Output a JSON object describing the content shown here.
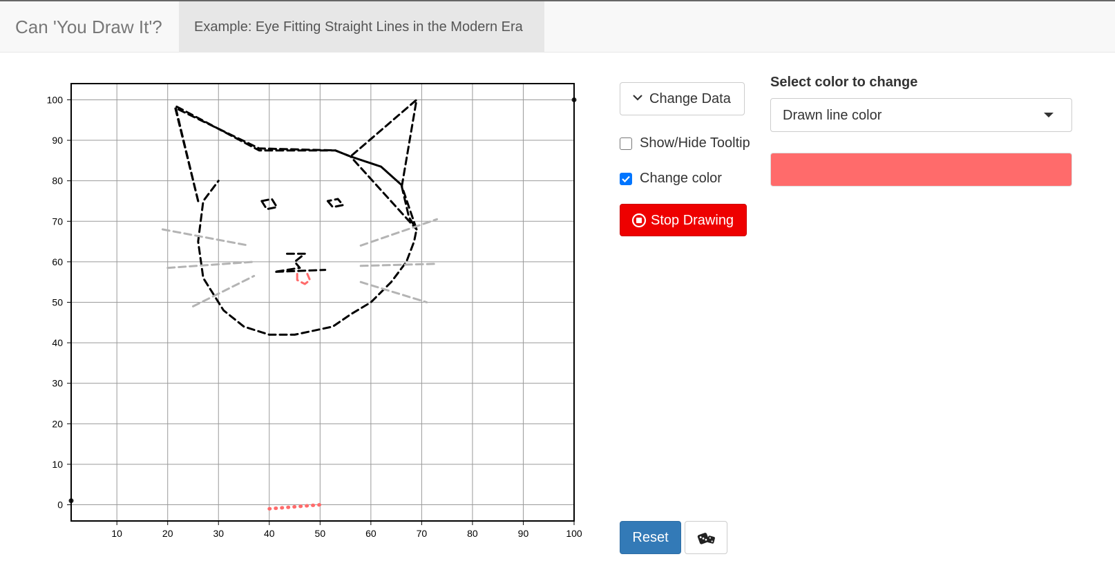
{
  "navbar": {
    "brand": "Can 'You Draw It'?",
    "active_tab": "Example: Eye Fitting Straight Lines in the Modern Era"
  },
  "controls": {
    "change_data_label": "Change Data",
    "show_hide_tooltip_label": "Show/Hide Tooltip",
    "show_hide_tooltip_checked": false,
    "change_color_label": "Change color",
    "change_color_checked": true,
    "stop_drawing_label": "Stop Drawing",
    "reset_label": "Reset",
    "stop_color": "#ee0000",
    "reset_color": "#337ab7"
  },
  "color_picker": {
    "label": "Select color to change",
    "selected": "Drawn line color",
    "swatch_color": "#ff6b6b"
  },
  "chart_data": {
    "type": "line",
    "xlim": [
      1,
      100
    ],
    "ylim": [
      -4,
      104
    ],
    "x_ticks": [
      10,
      20,
      30,
      40,
      50,
      60,
      70,
      80,
      90,
      100
    ],
    "y_ticks": [
      0,
      10,
      20,
      30,
      40,
      50,
      60,
      70,
      80,
      90,
      100
    ],
    "grid": true,
    "anchor_points": [
      [
        1,
        1
      ],
      [
        100,
        100
      ]
    ],
    "series": [
      {
        "role": "ears-and-head",
        "color": "#000000",
        "x": [
          26,
          21.5,
          38,
          53,
          56,
          62,
          66,
          67.5,
          69,
          56,
          62,
          66,
          69,
          68.5,
          67,
          64,
          60,
          56,
          52.5,
          45,
          40,
          35,
          31,
          27,
          26,
          27,
          30
        ],
        "y": [
          75,
          98,
          88,
          87.5,
          86,
          83.5,
          79,
          71,
          68,
          86,
          83.5,
          79,
          68,
          65,
          60,
          55,
          50,
          47,
          44,
          42,
          42,
          44,
          48,
          56,
          65,
          75,
          80
        ]
      },
      {
        "role": "head-outline",
        "color": "#000000",
        "x": [
          26,
          21.5,
          38,
          53,
          56,
          69,
          66
        ],
        "y": [
          75,
          98.5,
          87.5,
          87.5,
          86,
          100,
          78
        ]
      },
      {
        "role": "right-eye",
        "color": "#000000",
        "x": [
          51.5,
          52.5,
          54.5,
          53.5,
          51.5
        ],
        "y": [
          75,
          73.5,
          74,
          75.5,
          75
        ]
      },
      {
        "role": "left-eye",
        "color": "#000000",
        "x": [
          38.5,
          39.5,
          41.5,
          40.5,
          38.5
        ],
        "y": [
          75,
          73,
          73.5,
          75.5,
          75
        ]
      },
      {
        "role": "whisker-left-1",
        "color": "#b4b4b4",
        "x": [
          19,
          36
        ],
        "y": [
          68,
          64
        ]
      },
      {
        "role": "whisker-left-2",
        "color": "#b4b4b4",
        "x": [
          20,
          37
        ],
        "y": [
          58.5,
          60
        ]
      },
      {
        "role": "whisker-left-3",
        "color": "#b4b4b4",
        "x": [
          25,
          37
        ],
        "y": [
          49,
          56.5
        ]
      },
      {
        "role": "whisker-right-1",
        "color": "#b4b4b4",
        "x": [
          58,
          73
        ],
        "y": [
          64,
          70.5
        ]
      },
      {
        "role": "whisker-right-2",
        "color": "#b4b4b4",
        "x": [
          58,
          73
        ],
        "y": [
          59,
          59.5
        ]
      },
      {
        "role": "whisker-right-3",
        "color": "#b4b4b4",
        "x": [
          58,
          71
        ],
        "y": [
          55,
          50
        ]
      },
      {
        "role": "nose-and-mouth",
        "color": "#000000",
        "x": [
          43.5,
          47,
          45,
          46,
          41,
          51
        ],
        "y": [
          62,
          62,
          60,
          58.5,
          57.5,
          58
        ]
      },
      {
        "role": "tongue",
        "color": "#ff6b6b",
        "x": [
          45.5,
          45.5,
          47,
          48,
          47.5
        ],
        "y": [
          57,
          55.5,
          54.5,
          55.5,
          57
        ]
      },
      {
        "role": "drawn-line",
        "color": "#ff6b6b",
        "x": [
          40,
          42,
          44,
          46,
          48,
          50
        ],
        "y": [
          -1,
          -0.8,
          -0.6,
          -0.4,
          -0.2,
          0
        ]
      }
    ]
  }
}
